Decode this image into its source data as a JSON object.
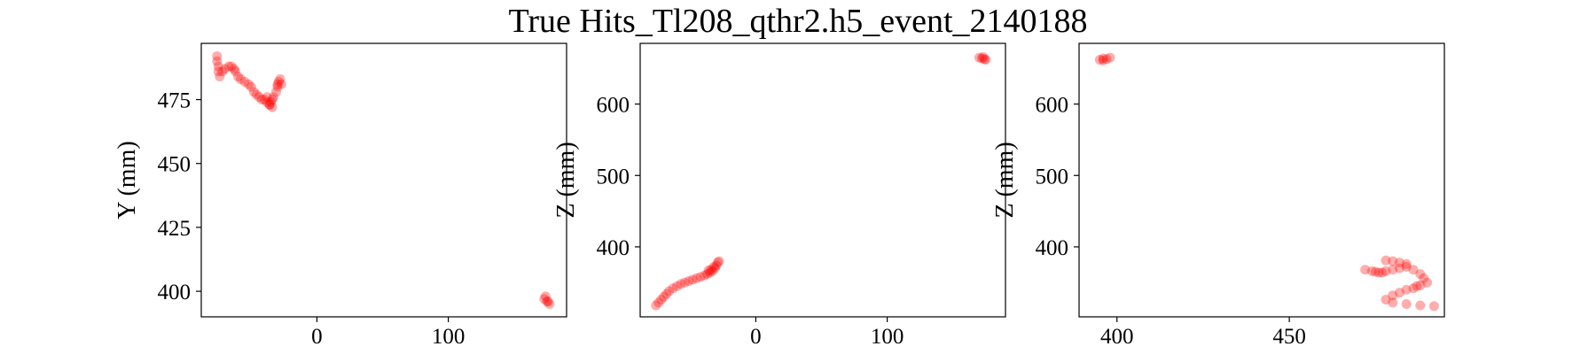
{
  "title": "True Hits_Tl208_qthr2.h5_event_2140188",
  "colors": {
    "hit": "#ff0000",
    "frame": "#000000"
  },
  "chart_data": [
    {
      "type": "scatter",
      "xlabel": "",
      "ylabel": "Y (mm)",
      "xlim": [
        -88,
        190
      ],
      "ylim": [
        390,
        497
      ],
      "xticks": [
        0,
        100
      ],
      "yticks": [
        400,
        425,
        450,
        475
      ],
      "points": [
        [
          -76,
          492
        ],
        [
          -76,
          490
        ],
        [
          -75,
          488
        ],
        [
          -75,
          486
        ],
        [
          -74,
          484
        ],
        [
          -72,
          486
        ],
        [
          -70,
          487
        ],
        [
          -67,
          488
        ],
        [
          -65,
          488
        ],
        [
          -63,
          487
        ],
        [
          -62,
          486
        ],
        [
          -60,
          484
        ],
        [
          -58,
          483
        ],
        [
          -55,
          482
        ],
        [
          -52,
          481
        ],
        [
          -50,
          480
        ],
        [
          -48,
          478
        ],
        [
          -46,
          477
        ],
        [
          -44,
          476
        ],
        [
          -42,
          475
        ],
        [
          -40,
          475
        ],
        [
          -38,
          474
        ],
        [
          -36,
          473
        ],
        [
          -34,
          472
        ],
        [
          -35,
          474
        ],
        [
          -33,
          476
        ],
        [
          -31,
          478
        ],
        [
          -30,
          480
        ],
        [
          -29,
          482
        ],
        [
          -28,
          483
        ],
        [
          -30,
          481
        ],
        [
          -27,
          481
        ],
        [
          -38,
          476
        ],
        [
          -36,
          473
        ],
        [
          -34,
          475
        ],
        [
          173,
          397
        ],
        [
          175,
          396
        ],
        [
          176,
          396
        ],
        [
          174,
          398
        ],
        [
          177,
          395
        ]
      ]
    },
    {
      "type": "scatter",
      "xlabel": "",
      "ylabel": "Z (mm)",
      "xlim": [
        -88,
        190
      ],
      "ylim": [
        302,
        685
      ],
      "xticks": [
        0,
        100
      ],
      "yticks": [
        400,
        500,
        600
      ],
      "points": [
        [
          -76,
          318
        ],
        [
          -74,
          322
        ],
        [
          -72,
          326
        ],
        [
          -70,
          330
        ],
        [
          -68,
          334
        ],
        [
          -66,
          338
        ],
        [
          -63,
          342
        ],
        [
          -60,
          345
        ],
        [
          -57,
          348
        ],
        [
          -54,
          350
        ],
        [
          -51,
          352
        ],
        [
          -48,
          354
        ],
        [
          -45,
          356
        ],
        [
          -42,
          358
        ],
        [
          -39,
          360
        ],
        [
          -37,
          362
        ],
        [
          -35,
          364
        ],
        [
          -33,
          366
        ],
        [
          -31,
          370
        ],
        [
          -30,
          374
        ],
        [
          -29,
          378
        ],
        [
          -28,
          380
        ],
        [
          -32,
          372
        ],
        [
          -34,
          368
        ],
        [
          -36,
          367
        ],
        [
          170,
          665
        ],
        [
          172,
          664
        ],
        [
          174,
          663
        ],
        [
          175,
          662
        ],
        [
          173,
          666
        ]
      ]
    },
    {
      "type": "scatter",
      "xlabel": "",
      "ylabel": "Z (mm)",
      "xlim": [
        389,
        495
      ],
      "ylim": [
        302,
        685
      ],
      "xticks": [
        400,
        450
      ],
      "yticks": [
        400,
        500,
        600
      ],
      "points": [
        [
          395,
          662
        ],
        [
          396,
          664
        ],
        [
          397,
          663
        ],
        [
          398,
          665
        ],
        [
          396,
          661
        ],
        [
          472,
          368
        ],
        [
          474,
          366
        ],
        [
          476,
          364
        ],
        [
          478,
          366
        ],
        [
          480,
          368
        ],
        [
          482,
          370
        ],
        [
          484,
          372
        ],
        [
          486,
          368
        ],
        [
          488,
          362
        ],
        [
          489,
          356
        ],
        [
          490,
          350
        ],
        [
          488,
          346
        ],
        [
          486,
          342
        ],
        [
          484,
          340
        ],
        [
          482,
          336
        ],
        [
          480,
          332
        ],
        [
          478,
          326
        ],
        [
          480,
          322
        ],
        [
          484,
          320
        ],
        [
          488,
          318
        ],
        [
          492,
          317
        ],
        [
          480,
          380
        ],
        [
          482,
          378
        ],
        [
          484,
          376
        ],
        [
          478,
          381
        ],
        [
          475,
          365
        ],
        [
          477,
          364
        ],
        [
          487,
          345
        ]
      ]
    }
  ]
}
